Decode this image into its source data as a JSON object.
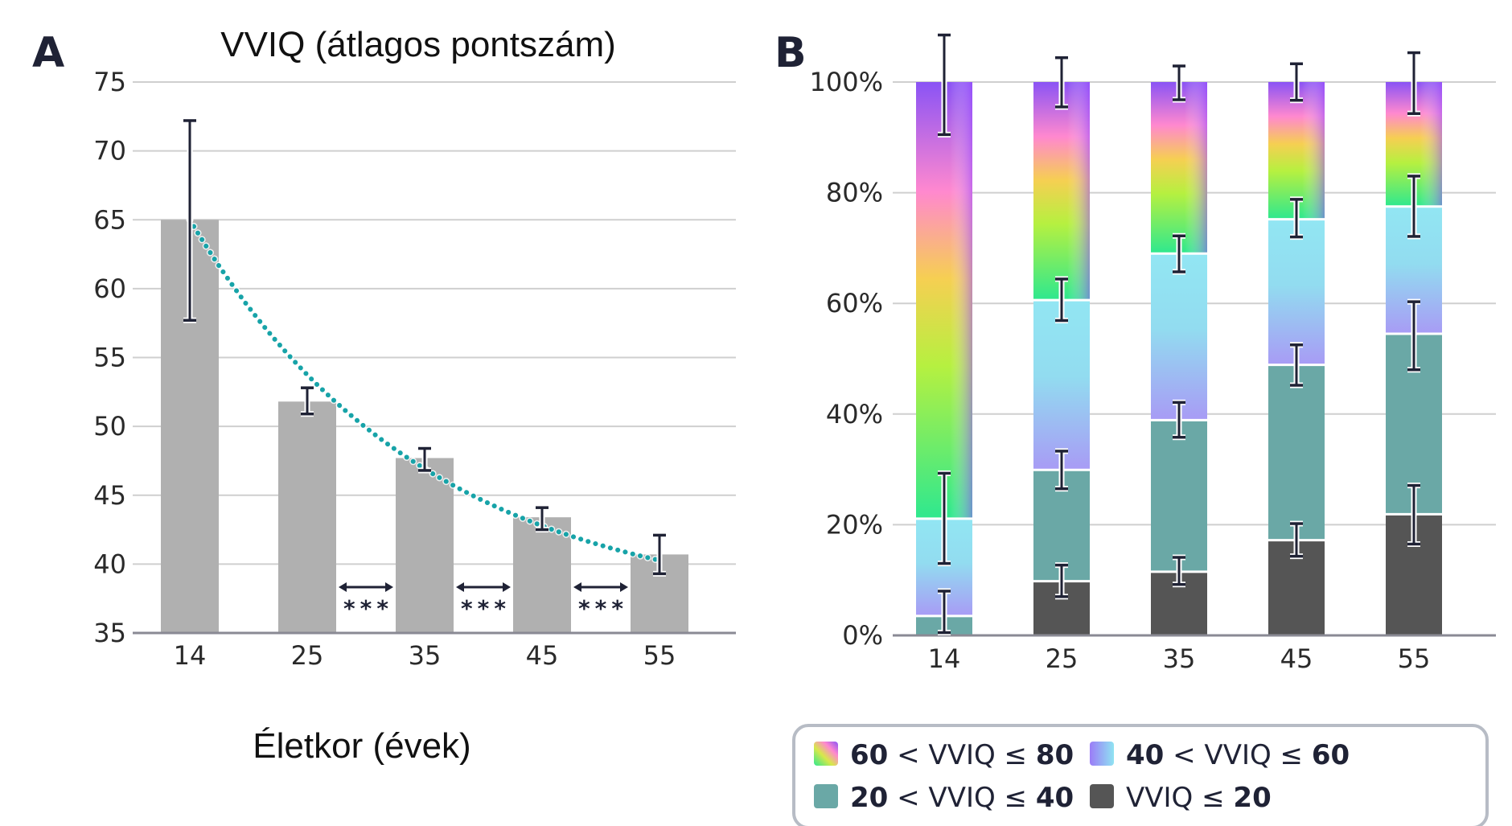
{
  "panel_a": {
    "label": "A",
    "chart_data": {
      "type": "bar",
      "title": "VVIQ (átlagos pontszám)",
      "xlabel": "Életkor (évek)",
      "ylabel": "",
      "categories": [
        "14",
        "25",
        "35",
        "45",
        "55"
      ],
      "values": [
        65,
        51.8,
        47.7,
        43.4,
        40.7
      ],
      "error_low": [
        57.7,
        50.9,
        46.8,
        42.5,
        39.3
      ],
      "error_high": [
        72.2,
        52.8,
        48.4,
        44.1,
        42.1
      ],
      "trend_line": "exponential decay, dotted teal",
      "yticks": [
        "35",
        "40",
        "45",
        "50",
        "55",
        "60",
        "65",
        "70",
        "75"
      ],
      "ylim": [
        35,
        75
      ],
      "significance": [
        "***",
        "***",
        "***"
      ],
      "grid": true,
      "colors": {
        "bar": "#b0b0b0",
        "trend": "#17a3a8",
        "error": "#1f2235",
        "grid": "#cfcfcf",
        "axis": "#8a8a94"
      }
    }
  },
  "panel_b": {
    "label": "B",
    "chart_data": {
      "type": "bar",
      "stacked": true,
      "categories": [
        "14",
        "25",
        "35",
        "45",
        "55"
      ],
      "yticks": [
        "0%",
        "20%",
        "40%",
        "60%",
        "80%",
        "100%"
      ],
      "ylim": [
        0,
        100
      ],
      "series": [
        {
          "name": "VVIQ ≤ 20",
          "values": [
            0,
            9.8,
            11.5,
            17.2,
            21.9
          ],
          "color": "#555555"
        },
        {
          "name": "20 < VVIQ ≤ 40",
          "values": [
            3.5,
            20.1,
            27.4,
            31.7,
            32.6
          ],
          "color": "#6aa8a6"
        },
        {
          "name": "40 < VVIQ ≤ 60",
          "values": [
            17.6,
            30.7,
            30.1,
            26.3,
            23.0
          ],
          "color": "gradient-blue"
        },
        {
          "name": "60 < VVIQ ≤ 80",
          "values": [
            78.9,
            39.4,
            31.0,
            24.8,
            22.5
          ],
          "color": "gradient-rainbow"
        }
      ],
      "error_bars": [
        [
          [
            4,
            0.5,
            8
          ],
          [
            21.1,
            13,
            29.3
          ],
          [
            100,
            90.5,
            108.5
          ]
        ],
        [
          [
            9.8,
            7,
            12.7
          ],
          [
            29.9,
            26.5,
            33.3
          ],
          [
            60.6,
            56.9,
            64.4
          ],
          [
            100,
            95.5,
            104.4
          ]
        ],
        [
          [
            11.5,
            9.2,
            14.1
          ],
          [
            38.9,
            35.8,
            42.1
          ],
          [
            69,
            65.7,
            72.2
          ],
          [
            100,
            96.8,
            102.9
          ]
        ],
        [
          [
            17.2,
            14.3,
            20.2
          ],
          [
            48.9,
            45.2,
            52.5
          ],
          [
            75.2,
            72,
            78.8
          ],
          [
            100,
            96.7,
            103.3
          ]
        ],
        [
          [
            21.9,
            16.5,
            27.1
          ],
          [
            54.5,
            48,
            60.3
          ],
          [
            77.5,
            72.1,
            83
          ],
          [
            100,
            94.3,
            105.3
          ]
        ]
      ],
      "grid": true,
      "legend_position": "bottom"
    }
  },
  "legend": {
    "items": [
      {
        "prefix": "60",
        "mid": " < VVIQ ≤ ",
        "suffix": "80"
      },
      {
        "prefix": "40",
        "mid": " < VVIQ ≤ ",
        "suffix": "60"
      },
      {
        "prefix": "20",
        "mid": " < VVIQ ≤ ",
        "suffix": "40"
      },
      {
        "prefix": "",
        "mid": "VVIQ ≤ ",
        "suffix": "20"
      }
    ]
  }
}
